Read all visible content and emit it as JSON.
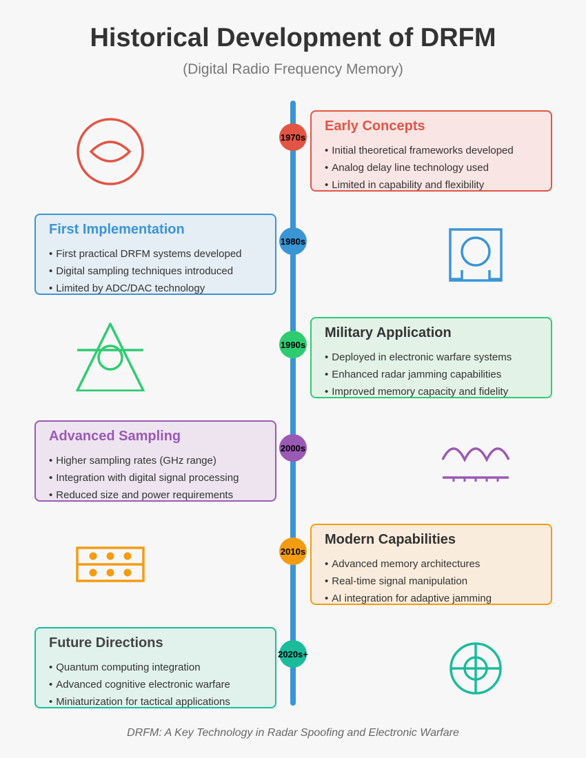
{
  "title": "Historical Development of DRFM",
  "subtitle": "(Digital Radio Frequency Memory)",
  "colors": {
    "spine": "#3a95d5",
    "red": "#e25545",
    "blue": "#3a95d5",
    "green": "#2ecc71",
    "purple": "#9b59b6",
    "orange": "#f39c12",
    "teal": "#1abc9c"
  },
  "eras": [
    {
      "label": "1970s",
      "title": "Early Concepts",
      "items": [
        "Initial theoretical frameworks developed",
        "Analog delay line technology used",
        "Limited in capability and flexibility"
      ],
      "icon": "eye-icon"
    },
    {
      "label": "1980s",
      "title": "First Implementation",
      "items": [
        "First practical DRFM systems developed",
        "Digital sampling techniques introduced",
        "Limited by ADC/DAC technology"
      ],
      "icon": "circuit-board-icon"
    },
    {
      "label": "1990s",
      "title": "Military Application",
      "items": [
        "Deployed in electronic warfare systems",
        "Enhanced radar jamming capabilities",
        "Improved memory capacity and fidelity"
      ],
      "icon": "triangle-emblem-icon"
    },
    {
      "label": "2000s",
      "title": "Advanced Sampling",
      "items": [
        "Higher sampling rates (GHz range)",
        "Integration with digital signal processing",
        "Reduced size and power requirements"
      ],
      "icon": "waveform-icon"
    },
    {
      "label": "2010s",
      "title": "Modern Capabilities",
      "items": [
        "Advanced memory architectures",
        "Real-time signal manipulation",
        "AI integration for adaptive jamming"
      ],
      "icon": "memory-chip-icon"
    },
    {
      "label": "2020s+",
      "title": "Future Directions",
      "items": [
        "Quantum computing integration",
        "Advanced cognitive electronic warfare",
        "Miniaturization for tactical applications"
      ],
      "icon": "target-icon"
    }
  ],
  "footer": "DRFM: A Key Technology in Radar Spoofing and Electronic Warfare"
}
